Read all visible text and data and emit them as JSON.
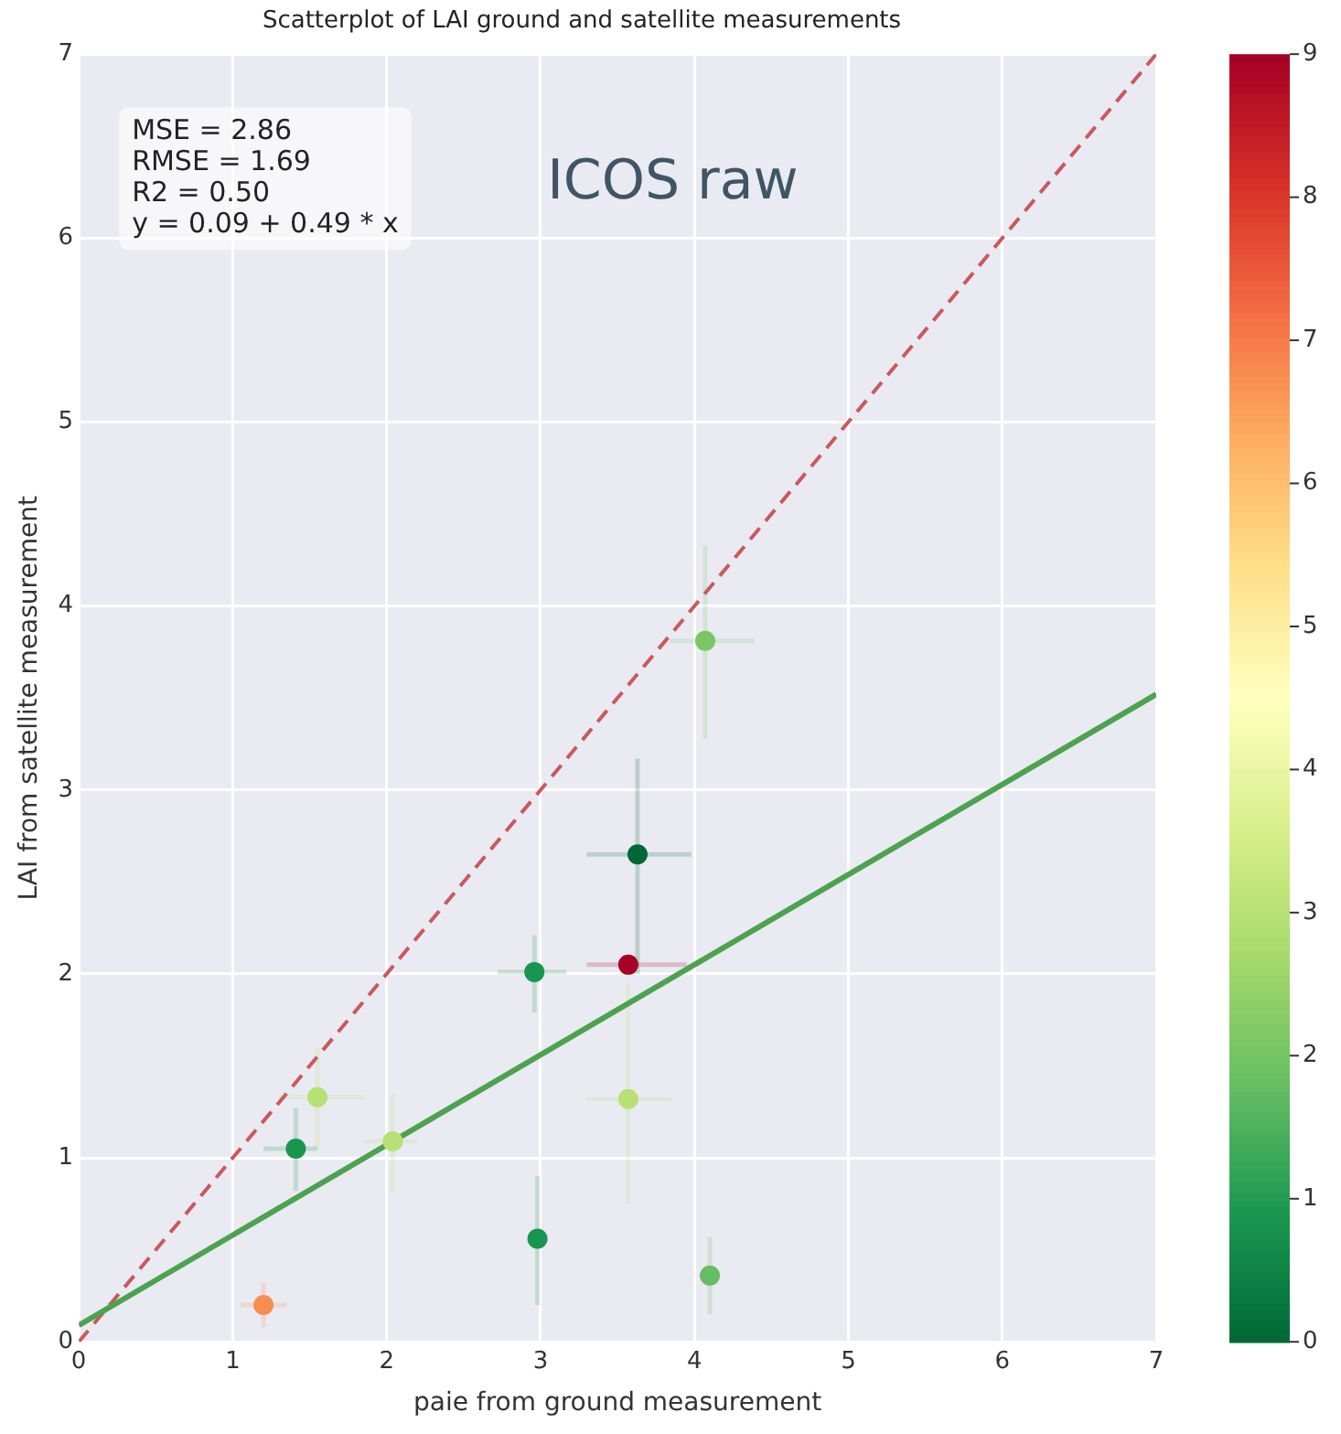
{
  "chart_data": {
    "type": "scatter",
    "title": "Scatterplot of LAI ground and satellite measurements",
    "xlabel": "paie from ground measurement",
    "ylabel": "LAI from satellite measurement",
    "xlim": [
      0,
      7
    ],
    "ylim": [
      0,
      7
    ],
    "xticks": [
      0,
      1,
      2,
      3,
      4,
      5,
      6,
      7
    ],
    "yticks": [
      0,
      1,
      2,
      3,
      4,
      5,
      6,
      7
    ],
    "clim": [
      0,
      9
    ],
    "cticks": [
      0,
      1,
      2,
      3,
      4,
      5,
      6,
      7,
      8,
      9
    ],
    "grid": true,
    "legend": false,
    "marker": "circle",
    "annotations": [
      "MSE = 2.86",
      "RMSE = 1.69",
      "R2 = 0.50",
      "y = 0.09 + 0.49 * x",
      "ICOS raw"
    ],
    "series": [
      {
        "type": "scatter",
        "x": [
          4.07,
          3.63,
          3.57,
          2.96,
          3.57,
          1.55,
          1.41,
          2.04,
          2.98,
          4.1,
          1.2
        ],
        "values": [
          3.81,
          2.65,
          2.05,
          2.01,
          1.32,
          1.33,
          1.05,
          1.09,
          0.56,
          0.36,
          0.2
        ],
        "colors": [
          "#7ac665",
          "#006837",
          "#a50026",
          "#18954f",
          "#b7e075",
          "#b7e075",
          "#18954f",
          "#b7e075",
          "#18954f",
          "#66bd63",
          "#f88d52"
        ],
        "errors": [
          [
            3.28,
            4.33
          ],
          [
            2.0,
            3.17
          ],
          null,
          [
            1.79,
            2.21
          ],
          [
            0.75,
            1.95
          ],
          [
            1.05,
            1.6
          ],
          [
            0.82,
            1.27
          ],
          [
            0.81,
            1.35
          ],
          [
            0.2,
            0.9
          ],
          [
            0.15,
            0.57
          ],
          [
            0.08,
            0.32
          ]
        ],
        "xerrors": [
          [
            3.84,
            4.39
          ],
          [
            3.3,
            3.98
          ],
          [
            3.3,
            3.95
          ],
          [
            2.72,
            3.17
          ],
          [
            3.3,
            3.85
          ],
          [
            1.3,
            1.85
          ],
          [
            1.2,
            1.55
          ],
          [
            1.85,
            2.2
          ],
          null,
          null,
          [
            1.05,
            1.35
          ]
        ]
      },
      {
        "type": "line",
        "x": [
          0,
          7
        ],
        "values": [
          0.09,
          3.52
        ],
        "color": "#4ba34f",
        "line_style": "solid",
        "marker": "none"
      },
      {
        "type": "line",
        "x": [
          0,
          7
        ],
        "values": [
          0,
          7
        ],
        "color": "#c9595c",
        "line_style": "dashed",
        "marker": "none"
      }
    ]
  }
}
